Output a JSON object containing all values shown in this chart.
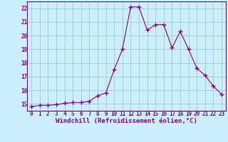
{
  "x": [
    0,
    1,
    2,
    3,
    4,
    5,
    6,
    7,
    8,
    9,
    10,
    11,
    12,
    13,
    14,
    15,
    16,
    17,
    18,
    19,
    20,
    21,
    22,
    23
  ],
  "y": [
    14.8,
    14.9,
    14.9,
    14.95,
    15.05,
    15.1,
    15.1,
    15.2,
    15.6,
    15.8,
    17.5,
    19.0,
    22.1,
    22.1,
    20.4,
    20.8,
    20.8,
    19.1,
    20.3,
    19.0,
    17.6,
    17.1,
    16.3,
    15.7
  ],
  "line_color": "#880088",
  "marker": "+",
  "marker_size": 4,
  "bg_color": "#cceeff",
  "grid_color": "#99cccc",
  "xlabel": "Windchill (Refroidissement éolien,°C)",
  "xlabel_color": "#880088",
  "tick_color": "#880088",
  "spine_color": "#880088",
  "ylim": [
    14.5,
    22.5
  ],
  "xlim": [
    -0.5,
    23.5
  ],
  "yticks": [
    15,
    16,
    17,
    18,
    19,
    20,
    21,
    22
  ],
  "xticks": [
    0,
    1,
    2,
    3,
    4,
    5,
    6,
    7,
    8,
    9,
    10,
    11,
    12,
    13,
    14,
    15,
    16,
    17,
    18,
    19,
    20,
    21,
    22,
    23
  ],
  "tick_fontsize": 5.5,
  "xlabel_fontsize": 6.5,
  "marker_color": "#880088"
}
